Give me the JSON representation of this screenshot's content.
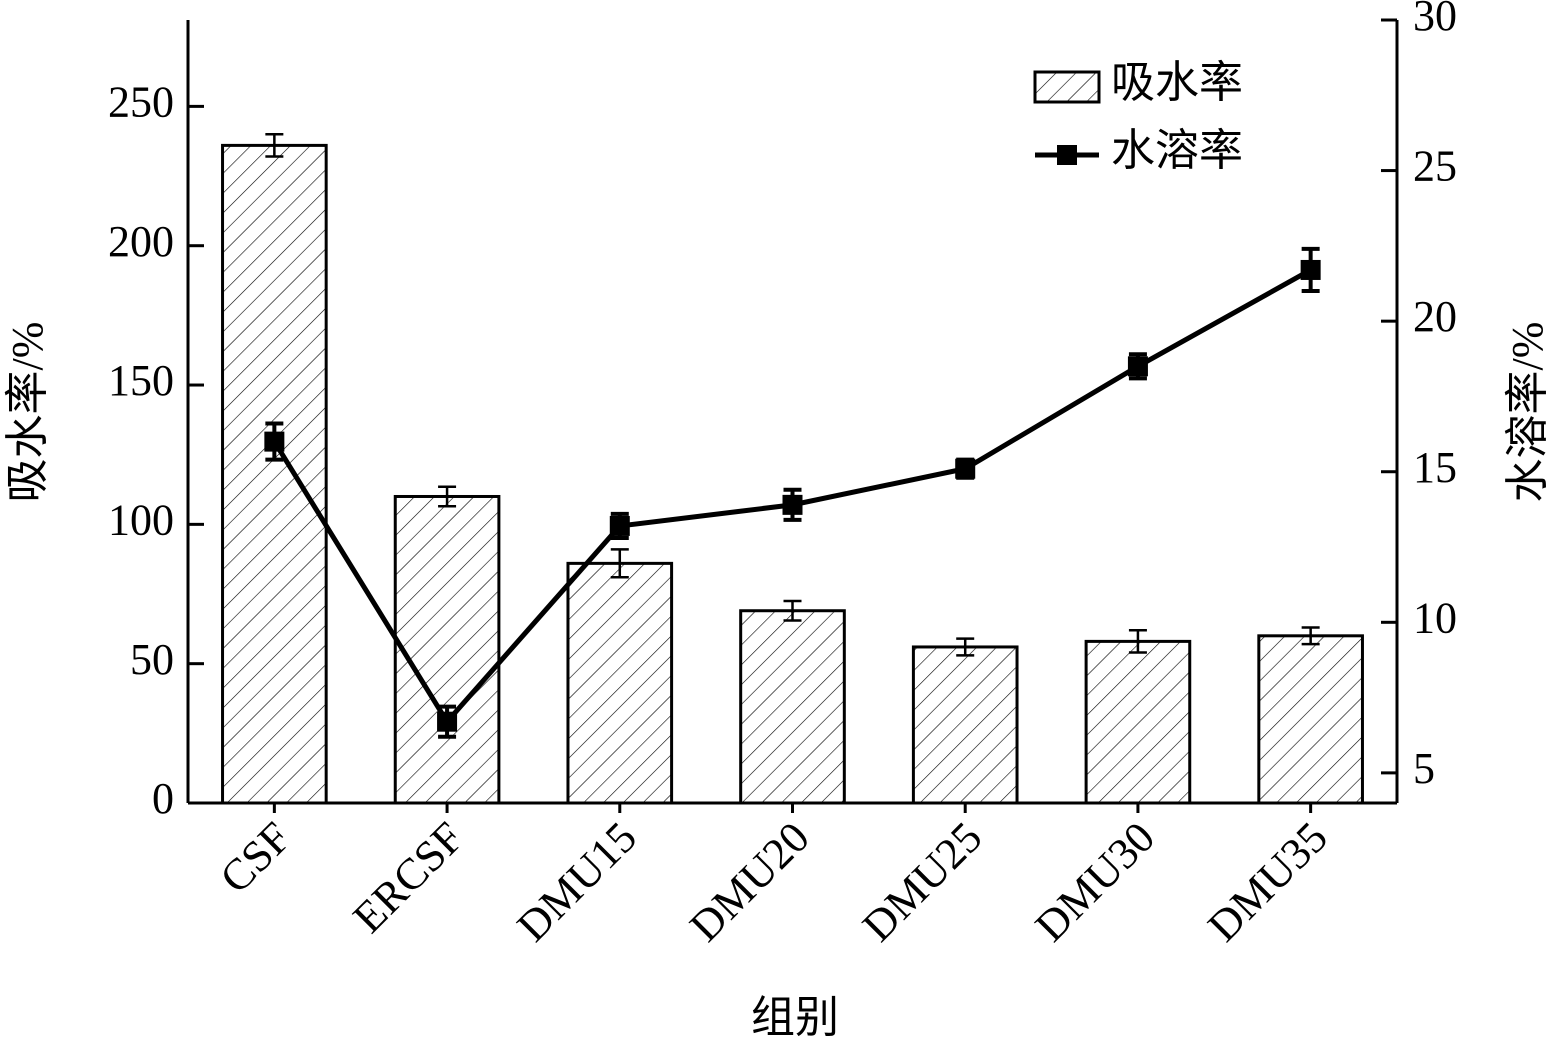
{
  "chart_data": {
    "type": "bar",
    "categories": [
      "CSF",
      "ERCSF",
      "DMU15",
      "DMU20",
      "DMU25",
      "DMU30",
      "DMU35"
    ],
    "series": [
      {
        "name": "吸水率",
        "type": "bar",
        "color": "#000000",
        "values": [
          236,
          110,
          86,
          69,
          56,
          58,
          60
        ],
        "errors": [
          4,
          3.5,
          5,
          3.5,
          3,
          4,
          3
        ]
      },
      {
        "name": "水溶率",
        "type": "line",
        "axis": "y2",
        "color": "#000000",
        "values": [
          16.0,
          6.7,
          13.2,
          13.9,
          15.1,
          18.5,
          21.7
        ],
        "errors": [
          0.6,
          0.5,
          0.4,
          0.5,
          0.3,
          0.4,
          0.7
        ]
      }
    ],
    "x_label": "组别",
    "y_label": "吸水率/%",
    "y2_label": "水溶率/%",
    "ylim": [
      0,
      281
    ],
    "yticks": [
      0,
      50,
      100,
      150,
      200,
      250
    ],
    "y2lim": [
      4,
      30
    ],
    "y2ticks": [
      5,
      10,
      15,
      20,
      25,
      30
    ],
    "legend": "upper right",
    "grid": false
  }
}
